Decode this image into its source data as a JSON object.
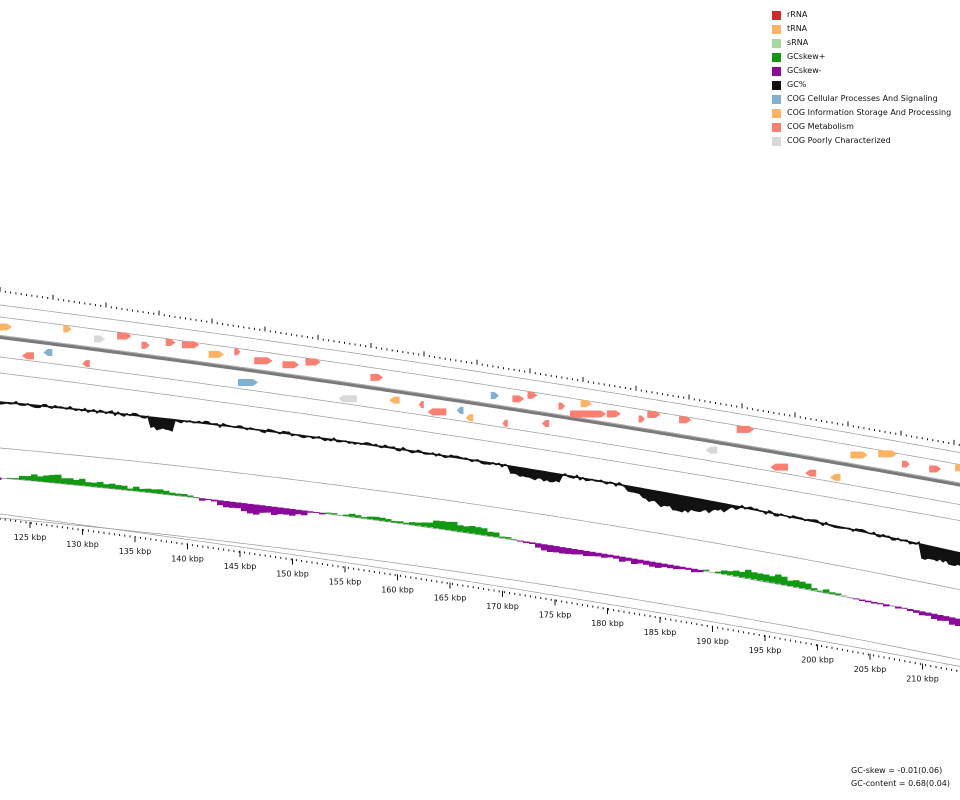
{
  "legend": [
    {
      "label": "rRNA",
      "color": "#d62728"
    },
    {
      "label": "tRNA",
      "color": "#fdb462"
    },
    {
      "label": "sRNA",
      "color": "#a6dba0"
    },
    {
      "label": "GCskew+",
      "color": "#119911"
    },
    {
      "label": "GCskew-",
      "color": "#8b0a9b"
    },
    {
      "label": "GC%",
      "color": "#111111"
    },
    {
      "label": "COG Cellular Processes And Signaling",
      "color": "#80b1d3"
    },
    {
      "label": "COG Information Storage And Processing",
      "color": "#fdb462"
    },
    {
      "label": "COG Metabolism",
      "color": "#fb8072"
    },
    {
      "label": "COG Poorly Characterized",
      "color": "#d9d9d9"
    }
  ],
  "ticks": [
    {
      "label": "125 kbp",
      "kbp": 125
    },
    {
      "label": "130 kbp",
      "kbp": 130
    },
    {
      "label": "135 kbp",
      "kbp": 135
    },
    {
      "label": "140 kbp",
      "kbp": 140
    },
    {
      "label": "145 kbp",
      "kbp": 145
    },
    {
      "label": "150 kbp",
      "kbp": 150
    },
    {
      "label": "155 kbp",
      "kbp": 155
    },
    {
      "label": "160 kbp",
      "kbp": 160
    },
    {
      "label": "165 kbp",
      "kbp": 165
    },
    {
      "label": "170 kbp",
      "kbp": 170
    },
    {
      "label": "175 kbp",
      "kbp": 175
    },
    {
      "label": "180 kbp",
      "kbp": 180
    },
    {
      "label": "185 kbp",
      "kbp": 185
    },
    {
      "label": "190 kbp",
      "kbp": 190
    },
    {
      "label": "195 kbp",
      "kbp": 195
    },
    {
      "label": "200 kbp",
      "kbp": 200
    },
    {
      "label": "205 kbp",
      "kbp": 205
    },
    {
      "label": "210 kbp",
      "kbp": 210
    }
  ],
  "stats": {
    "gc_skew": "GC-skew = -0.01(0.06)",
    "gc_content": "GC-content = 0.68(0.04)"
  }
}
